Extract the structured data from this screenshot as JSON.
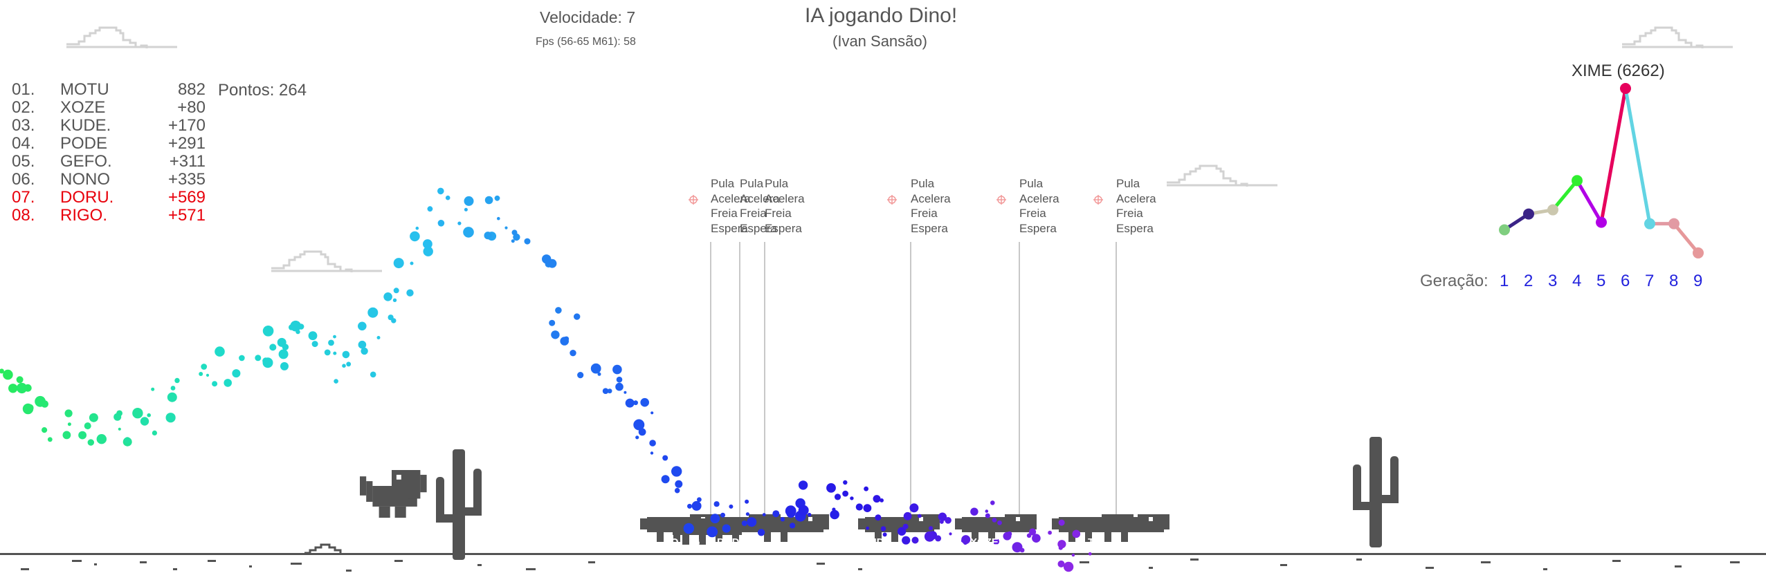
{
  "header": {
    "title": "IA jogando Dino!",
    "author": "(Ivan Sansão)",
    "speed_text": "Velocidade: 7",
    "fps_text": "Fps (56-65 M61): 58"
  },
  "ranking": [
    {
      "pos": "01.",
      "name": "MOTU",
      "score": "882",
      "red": false
    },
    {
      "pos": "02.",
      "name": "XOZE",
      "score": "+80",
      "red": false
    },
    {
      "pos": "03.",
      "name": "KUDE.",
      "score": "+170",
      "red": false
    },
    {
      "pos": "04.",
      "name": "PODE",
      "score": "+291",
      "red": false
    },
    {
      "pos": "05.",
      "name": "GEFO.",
      "score": "+311",
      "red": false
    },
    {
      "pos": "06.",
      "name": "NONO",
      "score": "+335",
      "red": false
    },
    {
      "pos": "07.",
      "name": "DORU.",
      "score": "+569",
      "red": true
    },
    {
      "pos": "08.",
      "name": "RIGO.",
      "score": "+571",
      "red": true
    }
  ],
  "points_text": "Pontos: 264",
  "action_labels": {
    "jump": "Pula",
    "accelerate": "Acelera",
    "brake": "Freia",
    "wait": "Espera"
  },
  "dino_labels": {
    "rigo": "RIGO.",
    "nono": "NO",
    "gefo": "G",
    "pode": "PODE",
    "kude": "KUDE.",
    "xoze": "XOZE",
    "motu": "TU"
  },
  "generation_chart": {
    "best_label": "XIME (6262)",
    "generation_label": "Geração:",
    "generations": [
      "1",
      "2",
      "3",
      "4",
      "5",
      "6",
      "7",
      "8",
      "9"
    ],
    "values": [
      1180,
      1750,
      1900,
      2950,
      1450,
      6262,
      1400,
      1400,
      350
    ],
    "colors": [
      "#7fce7f",
      "#3b2487",
      "#cbc7ae",
      "#2fee2f",
      "#b100e6",
      "#e6005c",
      "#62d4e3",
      "#e29aa3",
      "#e6989a"
    ],
    "max_value": 6262
  },
  "colors": {
    "dino": "#535353",
    "ground": "#535353",
    "cloud": "#dadada",
    "red": "#e8000b",
    "blue_link": "#2222dd"
  }
}
